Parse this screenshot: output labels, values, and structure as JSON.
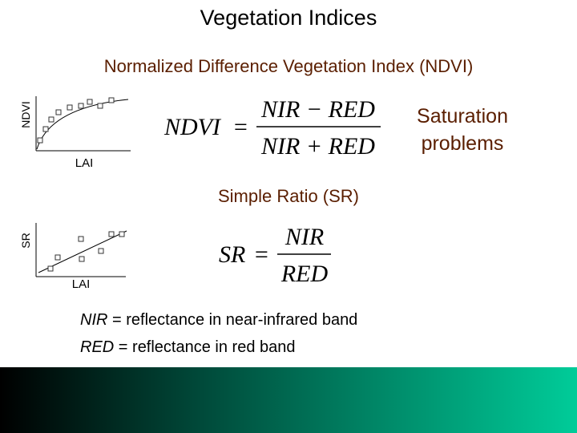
{
  "header": {
    "title": "Vegetation Indices"
  },
  "ndvi": {
    "heading": "Normalized Difference Vegetation Index (NDVI)",
    "sketch": {
      "y_label": "NDVI",
      "x_label": "LAI"
    },
    "formula": {
      "lhs": "NDVI",
      "equals": "=",
      "numerator": "NIR − RED",
      "denominator": "NIR + RED"
    },
    "note": [
      "Saturation",
      "problems"
    ]
  },
  "sr": {
    "heading": "Simple Ratio (SR)",
    "sketch": {
      "y_label": "SR",
      "x_label": "LAI"
    },
    "formula": {
      "lhs": "SR",
      "equals": "=",
      "numerator": "NIR",
      "denominator": "RED"
    }
  },
  "legend": [
    {
      "term": "NIR",
      "text": " = reflectance in near-infrared band"
    },
    {
      "term": "RED",
      "text": " = reflectance in red band"
    }
  ]
}
